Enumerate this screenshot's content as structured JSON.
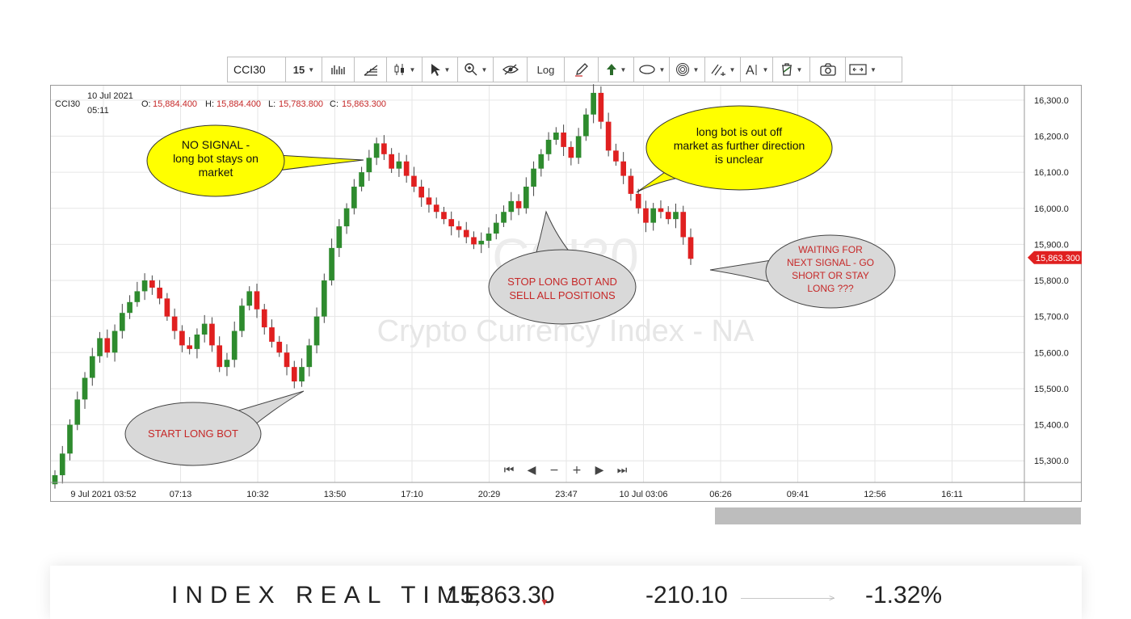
{
  "toolbar": {
    "symbol": "CCI30",
    "interval": "15",
    "log_label": "Log",
    "buttons": [
      {
        "name": "indicators-icon"
      },
      {
        "name": "fib-tools-icon"
      },
      {
        "name": "candle-type-icon",
        "caret": true
      },
      {
        "name": "cursor-icon",
        "caret": true
      },
      {
        "name": "zoom-icon",
        "caret": true
      },
      {
        "name": "visibility-icon"
      },
      {
        "name": "log-toggle"
      },
      {
        "name": "pencil-icon"
      },
      {
        "name": "arrow-up-icon",
        "caret": true
      },
      {
        "name": "ellipse-icon",
        "caret": true
      },
      {
        "name": "target-icon",
        "caret": true
      },
      {
        "name": "lines-icon",
        "caret": true
      },
      {
        "name": "text-icon",
        "caret": true
      },
      {
        "name": "trash-icon",
        "caret": true
      },
      {
        "name": "camera-icon"
      },
      {
        "name": "fit-icon",
        "caret": true
      }
    ]
  },
  "legend": {
    "symbol": "CCI30",
    "date": "10 Jul 2021",
    "time": "05:11",
    "o_label": "O:",
    "o": "15,884.400",
    "h_label": "H:",
    "h": "15,884.400",
    "l_label": "L:",
    "l": "15,783.800",
    "c_label": "C:",
    "c": "15,863.300"
  },
  "watermark": {
    "symbol": "CCI30",
    "name": "Crypto Currency Index - NA"
  },
  "colors": {
    "up": "#2e8b2e",
    "down": "#e02020",
    "grid": "#e6e6e6",
    "callout_yellow": "#ffff00",
    "callout_gray": "#d9d9d9",
    "price_tag": "#e02020"
  },
  "callouts": [
    {
      "text": "NO SIGNAL -\nlong bot stays on\nmarket",
      "style": "yellow"
    },
    {
      "text": "long bot is out off\nmarket as further direction\nis unclear",
      "style": "yellow"
    },
    {
      "text": "STOP LONG BOT AND\nSELL ALL POSITIONS",
      "style": "gray"
    },
    {
      "text": "WAITING FOR\nNEXT SIGNAL - GO\nSHORT OR STAY\nLONG ???",
      "style": "gray"
    },
    {
      "text": "START LONG BOT",
      "style": "gray"
    }
  ],
  "nav_buttons": [
    "⏮",
    "◀",
    "−",
    "+",
    "▶",
    "⏭"
  ],
  "chart_data": {
    "type": "candlestick",
    "y_ticks": [
      "16,300.0",
      "16,200.0",
      "16,100.0",
      "16,000.0",
      "15,900.0",
      "15,800.0",
      "15,700.0",
      "15,600.0",
      "15,500.0",
      "15,400.0",
      "15,300.0"
    ],
    "y_tick_values": [
      16300,
      16200,
      16100,
      16000,
      15900,
      15800,
      15700,
      15600,
      15500,
      15400,
      15300
    ],
    "x_ticks": [
      "9 Jul 2021 03:52",
      "07:13",
      "10:32",
      "13:50",
      "17:10",
      "20:29",
      "23:47",
      "10 Jul 03:06",
      "06:26",
      "09:41",
      "12:56",
      "16:11"
    ],
    "ylim": [
      15240,
      16340
    ],
    "current_price_label": "15,863.300",
    "current_price": 15863.3,
    "candle_interval": "15",
    "closes": [
      15260,
      15320,
      15400,
      15470,
      15530,
      15590,
      15640,
      15600,
      15660,
      15710,
      15740,
      15770,
      15800,
      15780,
      15750,
      15700,
      15660,
      15620,
      15610,
      15650,
      15680,
      15620,
      15560,
      15580,
      15660,
      15730,
      15770,
      15720,
      15670,
      15630,
      15600,
      15560,
      15520,
      15560,
      15620,
      15700,
      15800,
      15890,
      15950,
      16000,
      16060,
      16100,
      16140,
      16180,
      16150,
      16110,
      16130,
      16090,
      16060,
      16030,
      16010,
      15990,
      15970,
      15950,
      15940,
      15920,
      15900,
      15910,
      15930,
      15960,
      15990,
      16020,
      16000,
      16060,
      16110,
      16150,
      16190,
      16210,
      16170,
      16140,
      16200,
      16260,
      16320,
      16240,
      16160,
      16130,
      16090,
      16040,
      16000,
      15960,
      16000,
      15990,
      15970,
      15990,
      15920,
      15860
    ]
  },
  "bottom_bar": {
    "title": "INDEX REAL TIME",
    "price": "15,863.30",
    "change": "-210.10",
    "change_pct": "-1.32%"
  }
}
